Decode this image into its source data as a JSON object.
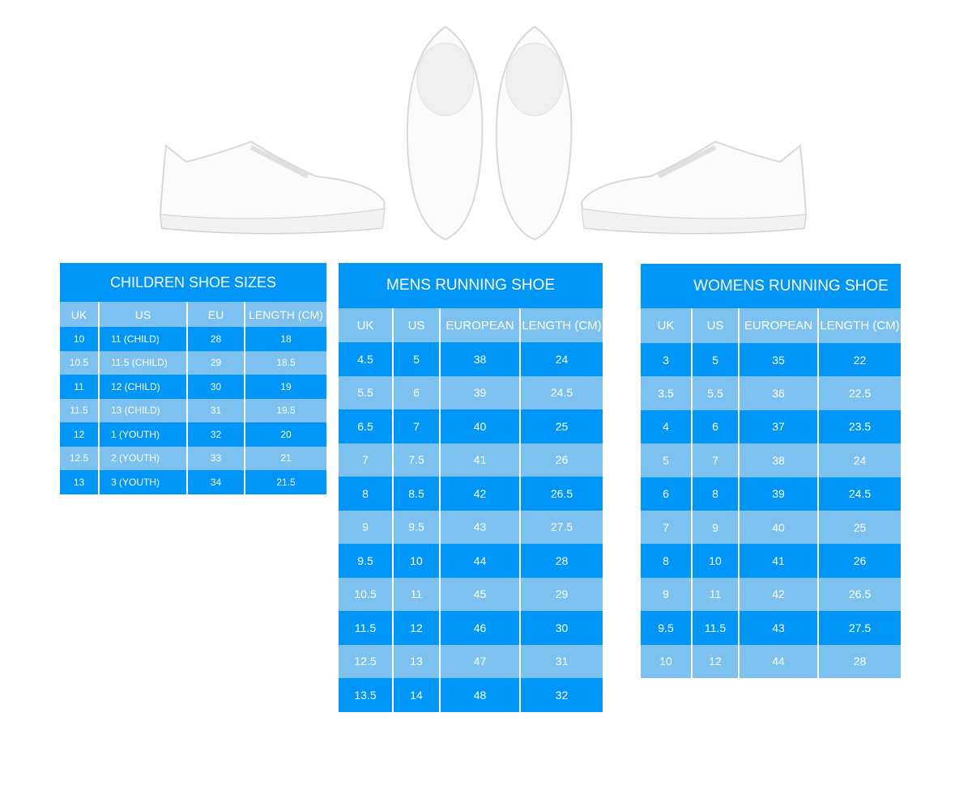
{
  "colors": {
    "dark_row": "#0096f7",
    "light_row": "#7cc1f0",
    "text": "#ffffff"
  },
  "images": [
    "shoe-side-left",
    "shoe-top-pair",
    "shoe-side-right"
  ],
  "children": {
    "title": "CHILDREN SHOE SIZES",
    "headers": [
      "UK",
      "US",
      "EU",
      "LENGTH (CM)"
    ],
    "rows": [
      [
        "10",
        "11 (CHILD)",
        "28",
        "18"
      ],
      [
        "10.5",
        "11.5 (CHILD)",
        "29",
        "18.5"
      ],
      [
        "11",
        "12 (CHILD)",
        "30",
        "19"
      ],
      [
        "11.5",
        "13 (CHILD)",
        "31",
        "19.5"
      ],
      [
        "12",
        "1 (YOUTH)",
        "32",
        "20"
      ],
      [
        "12.5",
        "2 (YOUTH)",
        "33",
        "21"
      ],
      [
        "13",
        "3 (YOUTH)",
        "34",
        "21.5"
      ]
    ]
  },
  "mens": {
    "title": "MENS RUNNING SHOE",
    "headers": [
      "UK",
      "US",
      "EUROPEAN",
      "LENGTH (CM)"
    ],
    "rows": [
      [
        "4.5",
        "5",
        "38",
        "24"
      ],
      [
        "5.5",
        "6",
        "39",
        "24.5"
      ],
      [
        "6.5",
        "7",
        "40",
        "25"
      ],
      [
        "7",
        "7.5",
        "41",
        "26"
      ],
      [
        "8",
        "8.5",
        "42",
        "26.5"
      ],
      [
        "9",
        "9.5",
        "43",
        "27.5"
      ],
      [
        "9.5",
        "10",
        "44",
        "28"
      ],
      [
        "10.5",
        "11",
        "45",
        "29"
      ],
      [
        "11.5",
        "12",
        "46",
        "30"
      ],
      [
        "12.5",
        "13",
        "47",
        "31"
      ],
      [
        "13.5",
        "14",
        "48",
        "32"
      ]
    ]
  },
  "womens": {
    "title": "WOMENS RUNNING SHOE",
    "headers": [
      "UK",
      "US",
      "EUROPEAN",
      "LENGTH (CM)"
    ],
    "rows": [
      [
        "3",
        "5",
        "35",
        "22"
      ],
      [
        "3.5",
        "5.5",
        "36",
        "22.5"
      ],
      [
        "4",
        "6",
        "37",
        "23.5"
      ],
      [
        "5",
        "7",
        "38",
        "24"
      ],
      [
        "6",
        "8",
        "39",
        "24.5"
      ],
      [
        "7",
        "9",
        "40",
        "25"
      ],
      [
        "8",
        "10",
        "41",
        "26"
      ],
      [
        "9",
        "11",
        "42",
        "26.5"
      ],
      [
        "9.5",
        "11.5",
        "43",
        "27.5"
      ],
      [
        "10",
        "12",
        "44",
        "28"
      ]
    ]
  }
}
